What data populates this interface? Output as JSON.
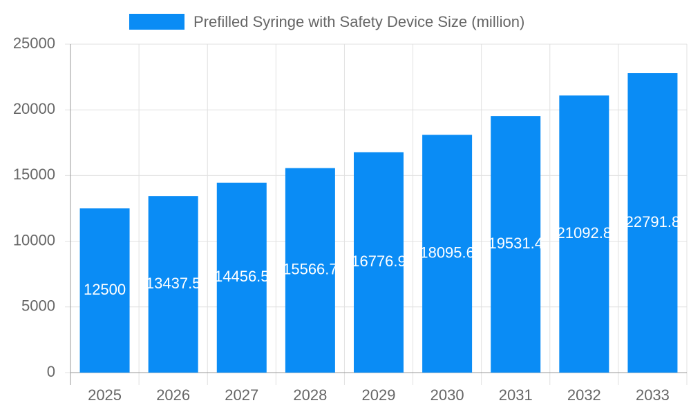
{
  "chart_data": {
    "type": "bar",
    "categories": [
      "2025",
      "2026",
      "2027",
      "2028",
      "2029",
      "2030",
      "2031",
      "2032",
      "2033"
    ],
    "series": [
      {
        "name": "Prefilled Syringe with Safety Device Size (million)",
        "color": "#0a8cf5",
        "values": [
          12500,
          13437.5,
          14456.5,
          15566.7,
          16776.9,
          18095.6,
          19531.4,
          21092.8,
          22791.8
        ]
      }
    ],
    "ylim": [
      0,
      25000
    ],
    "yticks": [
      0,
      5000,
      10000,
      15000,
      20000,
      25000
    ],
    "grid": true,
    "legend": "top"
  }
}
